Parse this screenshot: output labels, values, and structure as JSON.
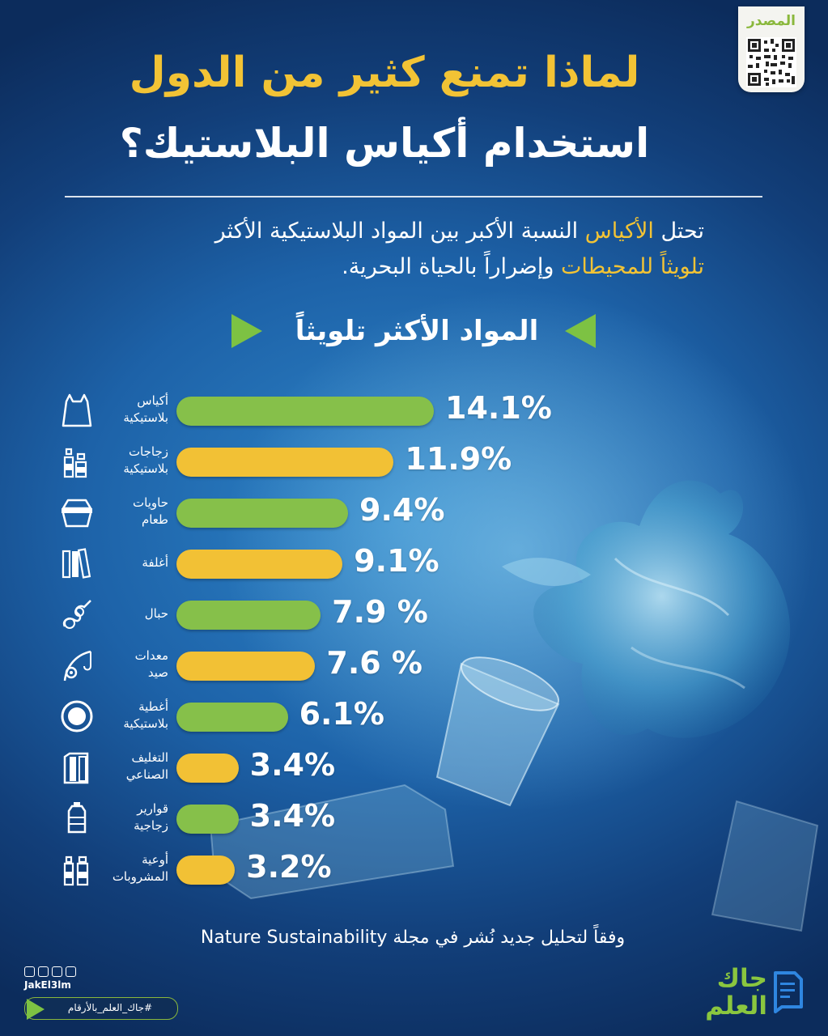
{
  "source": {
    "label": "المصدر"
  },
  "title": {
    "line1": "لماذا تمنع كثير من الدول",
    "line2": "استخدام أكياس البلاستيك؟"
  },
  "intro": {
    "line1": [
      {
        "text": "تحتل ",
        "highlight": false
      },
      {
        "text": "الأكياس",
        "highlight": true
      },
      {
        "text": " النسبة الأكبر بين المواد البلاستيكية الأكثر",
        "highlight": false
      }
    ],
    "line2": [
      {
        "text": "تلويثاً للمحيطات",
        "highlight": true
      },
      {
        "text": " وإضراراً بالحياة البحرية.",
        "highlight": false
      }
    ]
  },
  "section_heading": "المواد الأكثر تلويثاً",
  "colors": {
    "green": "#86c04a",
    "yellow": "#f2c135",
    "accent_text": "#f2c335"
  },
  "chart_data": {
    "type": "bar",
    "orientation": "horizontal",
    "unit": "%",
    "categories": [
      [
        "أكياس",
        "بلاستيكية"
      ],
      [
        "زجاجات",
        "بلاستيكية"
      ],
      [
        "حاويات",
        "طعام"
      ],
      [
        "أغلفة"
      ],
      [
        "حبال"
      ],
      [
        "معدات",
        "صيد"
      ],
      [
        "أغطية",
        "بلاستيكية"
      ],
      [
        "التغليف",
        "الصناعي"
      ],
      [
        "قوارير",
        "زجاجية"
      ],
      [
        "أوعية",
        "المشروبات"
      ]
    ],
    "icons": [
      "bag-icon",
      "bottles-icon",
      "food-container-icon",
      "wrappers-icon",
      "rope-icon",
      "fishing-gear-icon",
      "bottle-cap-icon",
      "industrial-packaging-icon",
      "water-jug-icon",
      "beverage-containers-icon"
    ],
    "values": [
      14.1,
      11.9,
      9.4,
      9.1,
      7.9,
      7.6,
      6.1,
      3.4,
      3.4,
      3.2
    ],
    "value_labels": [
      "14.1%",
      "11.9%",
      "9.4%",
      "9.1%",
      "7.9 %",
      "7.6 %",
      "6.1%",
      "3.4%",
      "3.4%",
      "3.2%"
    ],
    "bar_colors": [
      "green",
      "yellow",
      "green",
      "yellow",
      "green",
      "yellow",
      "green",
      "yellow",
      "green",
      "yellow"
    ]
  },
  "footnote": "وفقاً لتحليل جديد نُشر في مجلة Nature Sustainability",
  "footer": {
    "handle": "JakEl3lm",
    "hashtag": "#جاك_العلم_بالأرقام",
    "logo_lines": [
      "جاك",
      "العلم"
    ]
  }
}
